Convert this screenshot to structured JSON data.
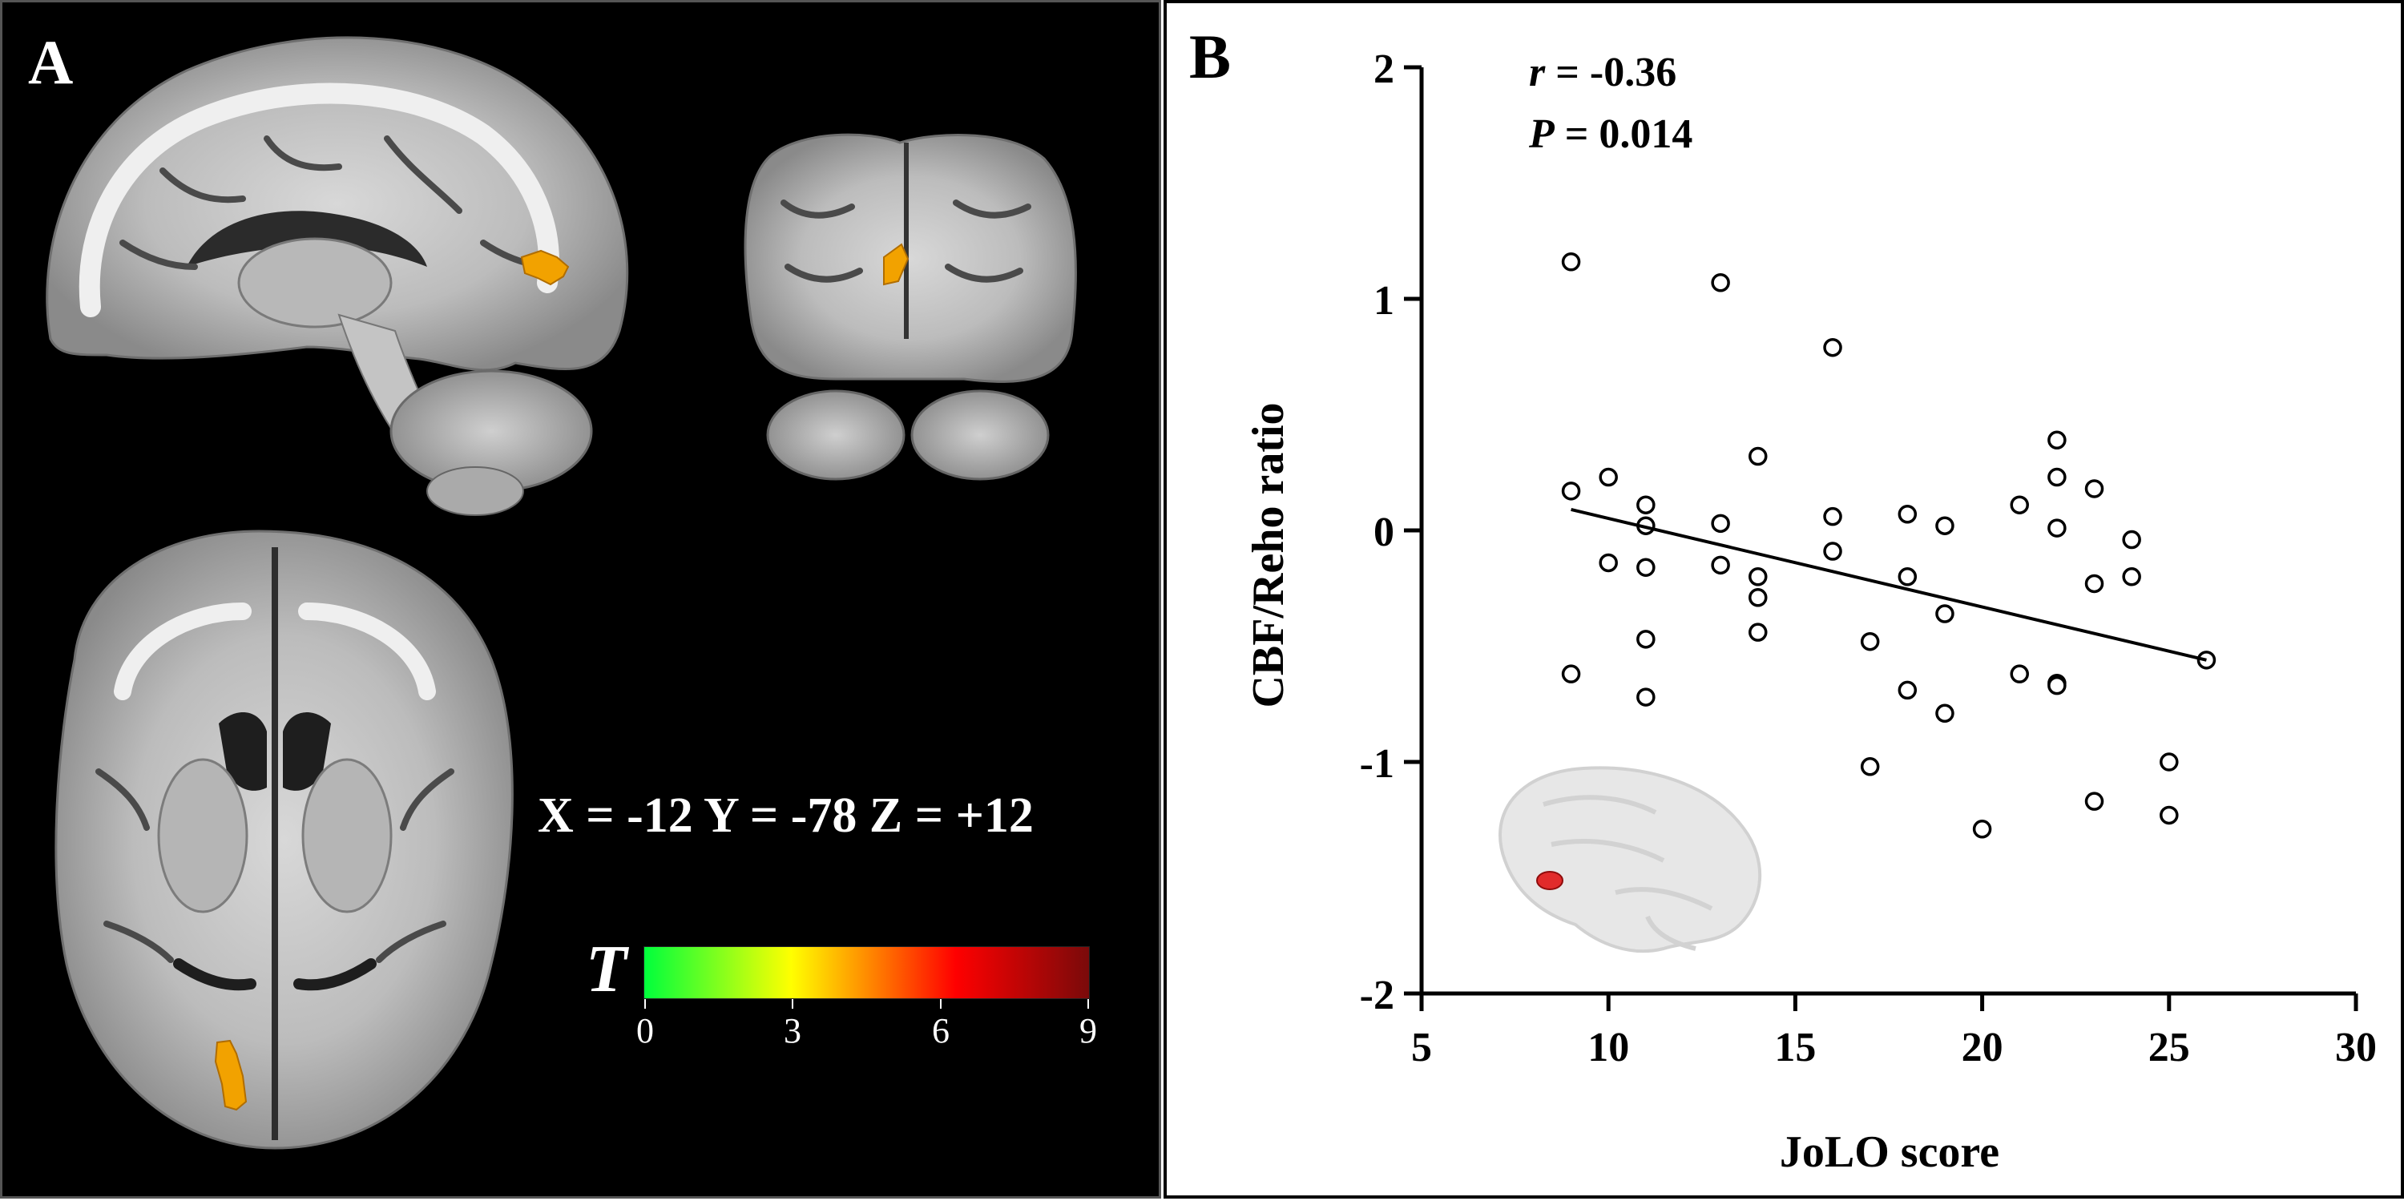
{
  "panel_a": {
    "letter": "A",
    "coordinates": "X = -12 Y = -78 Z = +12",
    "colorbar": {
      "symbol": "T",
      "ticks": [
        "0",
        "3",
        "6",
        "9"
      ],
      "colors": [
        "#00ff3c",
        "#ffff00",
        "#ff8c00",
        "#ff0000",
        "#7a0a0a"
      ]
    },
    "cluster_color": "#f2a200"
  },
  "panel_b": {
    "letter": "B",
    "stats": {
      "r_symbol": "r",
      "r_value": " = -0.36",
      "p_symbol": "P",
      "p_value": " = 0.014"
    }
  },
  "chart_data": {
    "type": "scatter",
    "xlabel": "JoLO score",
    "ylabel": "CBF/Reho ratio",
    "xlim": [
      5,
      30
    ],
    "ylim": [
      -2,
      2
    ],
    "xticks": [
      5,
      10,
      15,
      20,
      25,
      30
    ],
    "yticks": [
      -2,
      -1,
      0,
      1,
      2
    ],
    "grid": false,
    "marker": "open-circle",
    "points": [
      [
        9,
        1.16
      ],
      [
        9,
        0.17
      ],
      [
        9,
        -0.62
      ],
      [
        10,
        0.23
      ],
      [
        10,
        -0.14
      ],
      [
        11,
        0.11
      ],
      [
        11,
        0.02
      ],
      [
        11,
        -0.16
      ],
      [
        11,
        -0.47
      ],
      [
        11,
        -0.72
      ],
      [
        13,
        1.07
      ],
      [
        13,
        0.03
      ],
      [
        13,
        -0.15
      ],
      [
        14,
        0.32
      ],
      [
        14,
        -0.2
      ],
      [
        14,
        -0.29
      ],
      [
        14,
        -0.44
      ],
      [
        16,
        0.79
      ],
      [
        16,
        0.06
      ],
      [
        16,
        -0.09
      ],
      [
        17,
        -0.48
      ],
      [
        17,
        -1.02
      ],
      [
        18,
        0.07
      ],
      [
        18,
        -0.2
      ],
      [
        18,
        -0.69
      ],
      [
        19,
        0.02
      ],
      [
        19,
        -0.36
      ],
      [
        19,
        -0.79
      ],
      [
        20,
        -1.29
      ],
      [
        21,
        0.11
      ],
      [
        21,
        -0.62
      ],
      [
        22,
        0.39
      ],
      [
        22,
        0.23
      ],
      [
        22,
        0.01
      ],
      [
        22,
        -0.66
      ],
      [
        22,
        -0.67
      ],
      [
        23,
        0.18
      ],
      [
        23,
        -0.23
      ],
      [
        23,
        -1.17
      ],
      [
        24,
        -0.04
      ],
      [
        24,
        -0.2
      ],
      [
        25,
        -1.0
      ],
      [
        25,
        -1.23
      ],
      [
        26,
        -0.56
      ]
    ],
    "fit_line": {
      "x": [
        9,
        26
      ],
      "y": [
        0.09,
        -0.56
      ]
    }
  }
}
